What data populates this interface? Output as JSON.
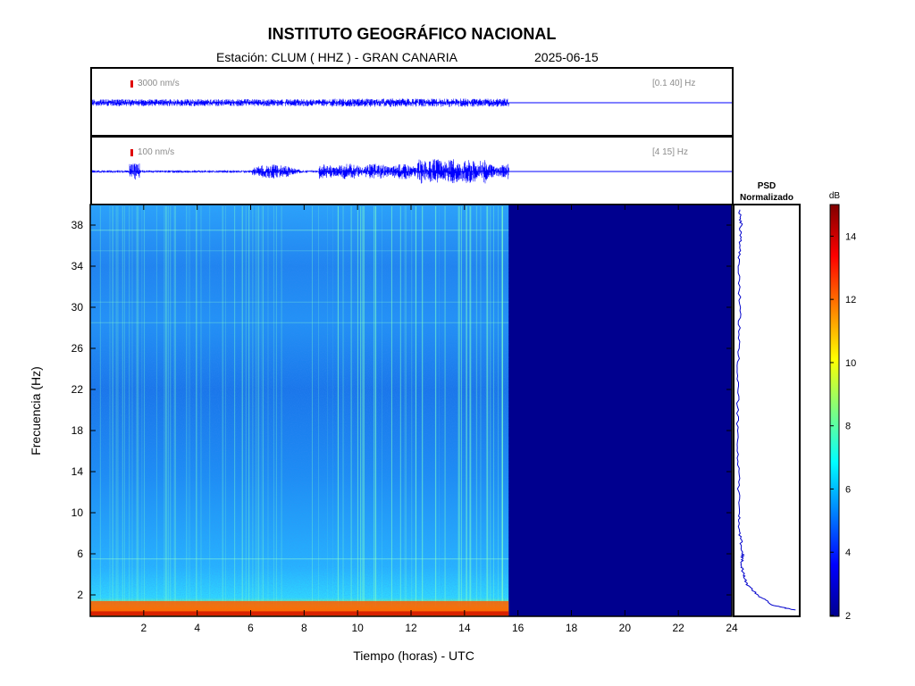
{
  "header": {
    "title": "INSTITUTO GEOGRÁFICO NACIONAL",
    "station": "Estación:  CLUM ( HHZ ) - GRAN CANARIA",
    "date": "2025-06-15"
  },
  "traces": [
    {
      "scale_label": "3000 nm/s",
      "band_label": "[0.1 40] Hz",
      "color": "#0000ff"
    },
    {
      "scale_label": "100 nm/s",
      "band_label": "[4 15] Hz",
      "color": "#0000ff"
    }
  ],
  "psd": {
    "title_line1": "PSD",
    "title_line2": "Normalizado"
  },
  "colorbar": {
    "unit": "dB",
    "ticks": [
      2,
      4,
      6,
      8,
      10,
      12,
      14
    ],
    "range": [
      2,
      15
    ],
    "colormap": "jet"
  },
  "chart_data": {
    "type": "heatmap",
    "xlabel": "Tiempo (horas) - UTC",
    "ylabel": "Frecuencia  (Hz)",
    "xlim": [
      0,
      24
    ],
    "ylim": [
      0,
      40
    ],
    "x_ticks": [
      2,
      4,
      6,
      8,
      10,
      12,
      14,
      16,
      18,
      20,
      22,
      24
    ],
    "y_ticks": [
      2,
      6,
      10,
      14,
      18,
      22,
      26,
      30,
      34,
      38
    ],
    "data_end_hour": 15.65,
    "no_data_color": "#00008f",
    "psd_profile": {
      "freq": [
        0.5,
        1,
        2,
        3,
        4,
        5,
        6,
        8,
        10,
        14,
        18,
        22,
        26,
        30,
        34,
        36,
        38,
        39.5
      ],
      "normalized": [
        0.97,
        0.6,
        0.35,
        0.18,
        0.13,
        0.1,
        0.12,
        0.07,
        0.06,
        0.05,
        0.04,
        0.04,
        0.05,
        0.07,
        0.06,
        0.07,
        0.09,
        0.07
      ]
    }
  }
}
